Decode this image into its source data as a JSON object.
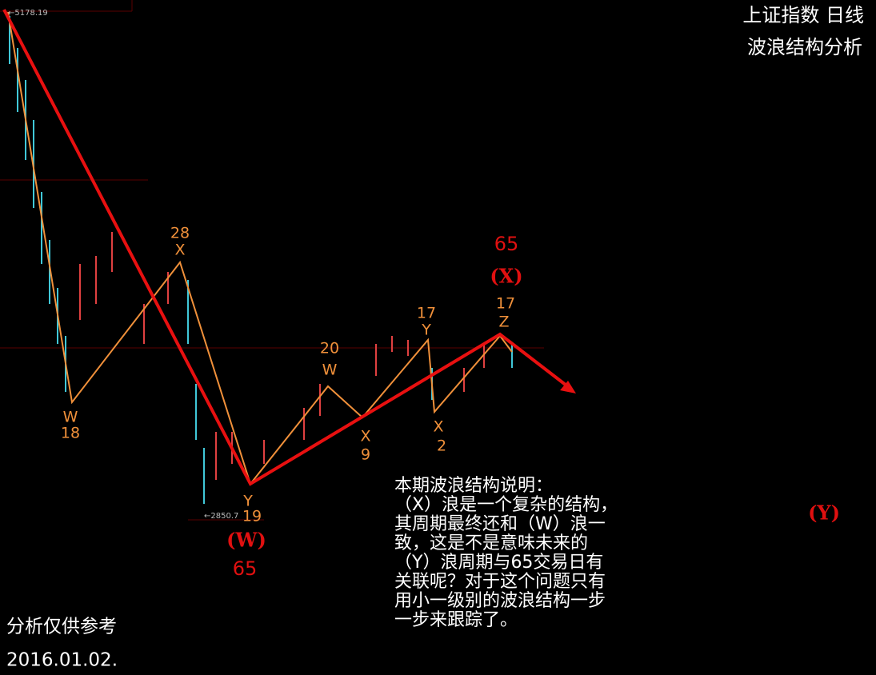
{
  "header": {
    "title": "上证指数 日线",
    "subtitle": "波浪结构分析"
  },
  "price_labels": {
    "high": "←5178.19",
    "low": "←2850.7"
  },
  "wave_labels": [
    {
      "count": "28",
      "label": "X"
    },
    {
      "label": "W",
      "count": "18"
    },
    {
      "label": "Y",
      "count": "19"
    },
    {
      "label": "(W)",
      "count": "65"
    },
    {
      "count": "20",
      "label": "W"
    },
    {
      "label": "X",
      "count": "9"
    },
    {
      "count": "17",
      "label": "Y"
    },
    {
      "label": "X",
      "count": "2"
    },
    {
      "count": "17",
      "label": "Z"
    },
    {
      "count": "65",
      "label": "(X)"
    },
    {
      "label": "(Y)"
    }
  ],
  "note": [
    "本期波浪结构说明：",
    "（X）浪是一个复杂的结构，",
    "其周期最终还和（W）浪一",
    "致，这是不是意味未来的",
    "（Y）浪周期与65交易日有",
    "关联呢？对于这个问题只有",
    "用小一级别的波浪结构一步",
    "一步来跟踪了。"
  ],
  "footer": {
    "disclaimer": "分析仅供参考",
    "date": "2016.01.02."
  }
}
